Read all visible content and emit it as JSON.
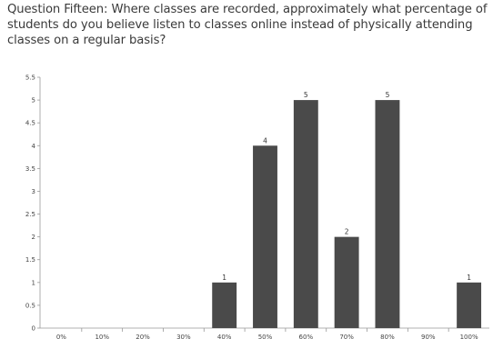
{
  "question": {
    "text": "Question Fifteen: Where classes are recorded, approximately what percentage of students do you believe listen to classes online instead of physically attending classes on a regular basis?"
  },
  "chart_data": {
    "type": "bar",
    "categories": [
      "0%",
      "10%",
      "20%",
      "30%",
      "40%",
      "50%",
      "60%",
      "70%",
      "80%",
      "90%",
      "100%"
    ],
    "values": [
      0,
      0,
      0,
      0,
      1,
      4,
      5,
      2,
      5,
      0,
      1
    ],
    "data_labels": [
      "",
      "",
      "",
      "",
      "1",
      "4",
      "5",
      "2",
      "5",
      "",
      "1"
    ],
    "y_ticks": [
      "0",
      "0.5",
      "1",
      "1.5",
      "2",
      "2.5",
      "3",
      "3.5",
      "4",
      "4.5",
      "5",
      "5.5"
    ],
    "ylim": [
      0,
      5.5
    ],
    "grid": false,
    "bar_color": "#4a4a4a"
  }
}
